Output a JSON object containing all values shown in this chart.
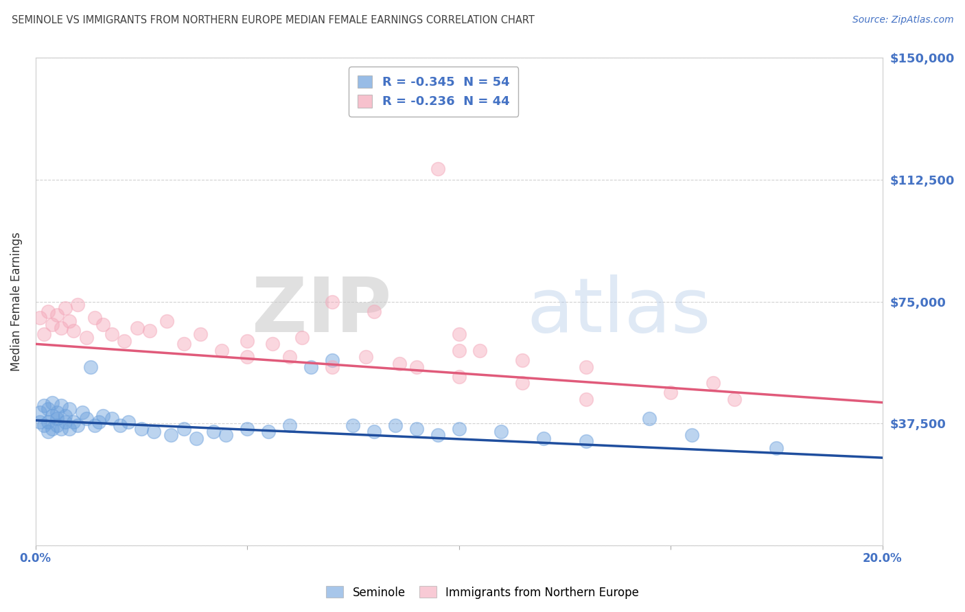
{
  "title": "SEMINOLE VS IMMIGRANTS FROM NORTHERN EUROPE MEDIAN FEMALE EARNINGS CORRELATION CHART",
  "source": "Source: ZipAtlas.com",
  "ylabel": "Median Female Earnings",
  "xlim": [
    0.0,
    0.2
  ],
  "ylim": [
    0,
    150000
  ],
  "yticks": [
    0,
    37500,
    75000,
    112500,
    150000
  ],
  "ytick_labels": [
    "",
    "$37,500",
    "$75,000",
    "$112,500",
    "$150,000"
  ],
  "xticks": [
    0.0,
    0.05,
    0.1,
    0.15,
    0.2
  ],
  "xtick_labels": [
    "0.0%",
    "",
    "",
    "",
    "20.0%"
  ],
  "watermark_zip": "ZIP",
  "watermark_atlas": "atlas",
  "legend_entries": [
    {
      "label": "R = -0.345  N = 54"
    },
    {
      "label": "R = -0.236  N = 44"
    }
  ],
  "legend_label_seminole": "Seminole",
  "legend_label_immigrants": "Immigrants from Northern Europe",
  "blue_color": "#6ca0dc",
  "pink_color": "#f4a7b9",
  "trend_blue": "#1f4e9e",
  "trend_pink": "#e05a7a",
  "blue_scatter": {
    "x": [
      0.001,
      0.001,
      0.002,
      0.002,
      0.003,
      0.003,
      0.003,
      0.004,
      0.004,
      0.004,
      0.005,
      0.005,
      0.005,
      0.006,
      0.006,
      0.007,
      0.007,
      0.008,
      0.008,
      0.009,
      0.01,
      0.011,
      0.012,
      0.013,
      0.014,
      0.015,
      0.016,
      0.018,
      0.02,
      0.022,
      0.025,
      0.028,
      0.032,
      0.035,
      0.038,
      0.042,
      0.045,
      0.05,
      0.055,
      0.06,
      0.065,
      0.07,
      0.075,
      0.08,
      0.085,
      0.09,
      0.095,
      0.1,
      0.11,
      0.12,
      0.13,
      0.145,
      0.155,
      0.175
    ],
    "y": [
      41000,
      38000,
      43000,
      37000,
      42000,
      38000,
      35000,
      40000,
      36000,
      44000,
      39000,
      37000,
      41000,
      43000,
      36000,
      38000,
      40000,
      42000,
      36000,
      38000,
      37000,
      41000,
      39000,
      55000,
      37000,
      38000,
      40000,
      39000,
      37000,
      38000,
      36000,
      35000,
      34000,
      36000,
      33000,
      35000,
      34000,
      36000,
      35000,
      37000,
      55000,
      57000,
      37000,
      35000,
      37000,
      36000,
      34000,
      36000,
      35000,
      33000,
      32000,
      39000,
      34000,
      30000
    ]
  },
  "pink_scatter": {
    "x": [
      0.001,
      0.002,
      0.003,
      0.004,
      0.005,
      0.006,
      0.007,
      0.008,
      0.009,
      0.01,
      0.012,
      0.014,
      0.016,
      0.018,
      0.021,
      0.024,
      0.027,
      0.031,
      0.035,
      0.039,
      0.044,
      0.05,
      0.056,
      0.063,
      0.07,
      0.078,
      0.086,
      0.095,
      0.105,
      0.115,
      0.05,
      0.06,
      0.07,
      0.08,
      0.09,
      0.1,
      0.115,
      0.13,
      0.15,
      0.165,
      0.1,
      0.13,
      0.16,
      0.1
    ],
    "y": [
      70000,
      65000,
      72000,
      68000,
      71000,
      67000,
      73000,
      69000,
      66000,
      74000,
      64000,
      70000,
      68000,
      65000,
      63000,
      67000,
      66000,
      69000,
      62000,
      65000,
      60000,
      58000,
      62000,
      64000,
      55000,
      58000,
      56000,
      116000,
      60000,
      57000,
      63000,
      58000,
      75000,
      72000,
      55000,
      52000,
      50000,
      55000,
      47000,
      45000,
      60000,
      45000,
      50000,
      65000
    ]
  },
  "blue_trend_x": [
    0.0,
    0.2
  ],
  "blue_trend_y": [
    38500,
    27000
  ],
  "pink_trend_x": [
    0.0,
    0.2
  ],
  "pink_trend_y": [
    62000,
    44000
  ],
  "background_color": "#ffffff",
  "grid_color": "#cccccc",
  "title_color": "#404040",
  "ylabel_color": "#333333",
  "tick_label_color": "#4472c4",
  "source_color": "#4472c4",
  "figsize": [
    14.06,
    8.92
  ],
  "dpi": 100
}
